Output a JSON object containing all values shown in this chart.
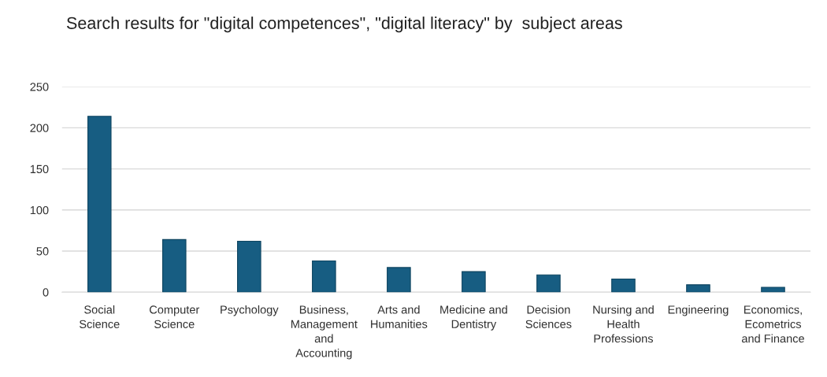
{
  "chart_data": {
    "type": "bar",
    "title": "Search results for \"digital competences\", \"digital literacy\" by  subject areas",
    "categories": [
      "Social\nScience",
      "Computer\nScience",
      "Psychology",
      "Business,\nManagement\nand\nAccounting",
      "Arts and\nHumanities",
      "Medicine and\nDentistry",
      "Decision\nSciences",
      "Nursing and\nHealth\nProfessions",
      "Engineering",
      "Economics,\nEcometrics\nand Finance"
    ],
    "values": [
      214,
      64,
      62,
      38,
      30,
      25,
      21,
      16,
      9,
      6
    ],
    "color": "#175d82",
    "ylim": [
      0,
      250
    ],
    "yticks": [
      0,
      50,
      100,
      150,
      200,
      250
    ],
    "grid": "y",
    "legend": false
  }
}
